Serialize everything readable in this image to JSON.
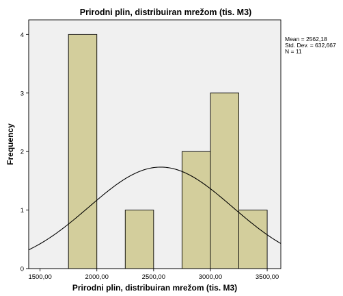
{
  "chart_data": {
    "type": "bar",
    "title": "Prirodni plin, distribuiran mrežom (tis. M3)",
    "xlabel": "Prirodni plin, distribuiran mrežom (tis. M3)",
    "ylabel": "Frequency",
    "xlim": [
      1400,
      3620
    ],
    "ylim": [
      0,
      4.25
    ],
    "bin_width": 250,
    "bins": [
      {
        "x0": 1750,
        "x1": 2000,
        "value": 4
      },
      {
        "x0": 2250,
        "x1": 2500,
        "value": 1
      },
      {
        "x0": 2750,
        "x1": 3000,
        "value": 2
      },
      {
        "x0": 3000,
        "x1": 3250,
        "value": 3
      },
      {
        "x0": 3250,
        "x1": 3500,
        "value": 1
      }
    ],
    "x_ticks": [
      {
        "value": 1500,
        "label": "1500,00"
      },
      {
        "value": 2000,
        "label": "2000,00"
      },
      {
        "value": 2500,
        "label": "2500,00"
      },
      {
        "value": 3000,
        "label": "3000,00"
      },
      {
        "value": 3500,
        "label": "3500,00"
      }
    ],
    "y_ticks": [
      {
        "value": 0,
        "label": "0"
      },
      {
        "value": 1,
        "label": "1"
      },
      {
        "value": 2,
        "label": "2"
      },
      {
        "value": 3,
        "label": "3"
      },
      {
        "value": 4,
        "label": "4"
      }
    ],
    "normal_curve": {
      "mean": 2562.18,
      "std_dev": 632.667,
      "n": 11
    },
    "stats": {
      "mean": "Mean = 2562,18",
      "std_dev": "Std. Dev. = 632,667",
      "n": "N = 11"
    },
    "grid": false,
    "legend": "none",
    "colors": {
      "bar": "#d3ce9c",
      "plot_background": "#f0f0f0"
    }
  }
}
